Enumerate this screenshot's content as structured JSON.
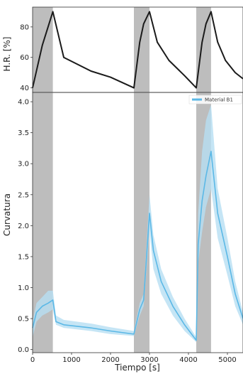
{
  "chart_data": [
    {
      "type": "line",
      "title": "",
      "xlabel": "",
      "ylabel": "H.R. [%]",
      "xlim": [
        0,
        5400
      ],
      "ylim": [
        37,
        93
      ],
      "yticks": [
        40,
        60,
        80
      ],
      "grid": false,
      "shaded_intervals": [
        [
          0,
          520
        ],
        [
          2600,
          3000
        ],
        [
          4200,
          4580
        ]
      ],
      "series": [
        {
          "x": [
            0,
            250,
            520,
            800,
            1500,
            2000,
            2600,
            2750,
            2850,
            3000,
            3200,
            3500,
            3900,
            4200,
            4350,
            4450,
            4580,
            4750,
            4950,
            5200,
            5400
          ],
          "y": [
            40,
            68,
            90,
            60,
            51,
            47,
            40,
            70,
            82,
            90,
            70,
            58,
            48,
            40,
            70,
            82,
            90,
            70,
            58,
            50,
            46
          ]
        }
      ]
    },
    {
      "type": "area",
      "title": "",
      "xlabel": "Tiempo [s]",
      "ylabel": "Curvatura",
      "xlim": [
        0,
        5400
      ],
      "ylim": [
        -0.05,
        4.15
      ],
      "xticks": [
        0,
        1000,
        2000,
        3000,
        4000,
        5000
      ],
      "yticks": [
        0.0,
        0.5,
        1.0,
        1.5,
        2.0,
        2.5,
        3.0,
        3.5,
        4.0
      ],
      "grid": false,
      "legend_position": "top-right",
      "shaded_intervals": [
        [
          0,
          520
        ],
        [
          2600,
          3000
        ],
        [
          4200,
          4580
        ]
      ],
      "series": [
        {
          "name": "Material B1",
          "x": [
            0,
            100,
            250,
            400,
            520,
            600,
            800,
            1500,
            2000,
            2600,
            2750,
            2850,
            3000,
            3100,
            3300,
            3600,
            3900,
            4200,
            4250,
            4350,
            4450,
            4580,
            4750,
            5000,
            5200,
            5400
          ],
          "y": [
            0.35,
            0.6,
            0.7,
            0.75,
            0.8,
            0.45,
            0.4,
            0.35,
            0.3,
            0.25,
            0.65,
            0.8,
            2.2,
            1.6,
            1.1,
            0.7,
            0.4,
            0.15,
            1.7,
            2.4,
            2.8,
            3.2,
            2.2,
            1.5,
            0.9,
            0.5
          ],
          "lower": [
            0.2,
            0.45,
            0.55,
            0.6,
            0.65,
            0.4,
            0.35,
            0.3,
            0.25,
            0.22,
            0.55,
            0.7,
            1.9,
            1.3,
            0.9,
            0.55,
            0.3,
            0.12,
            1.4,
            1.9,
            2.3,
            2.6,
            1.8,
            1.2,
            0.7,
            0.4
          ],
          "upper": [
            0.45,
            0.75,
            0.85,
            0.95,
            0.95,
            0.55,
            0.48,
            0.42,
            0.36,
            0.3,
            0.75,
            0.9,
            2.5,
            1.85,
            1.3,
            0.85,
            0.5,
            0.2,
            2.2,
            3.2,
            3.7,
            3.95,
            2.6,
            1.8,
            1.1,
            0.6
          ]
        }
      ]
    }
  ],
  "colors": {
    "line_top": "#1a1a1a",
    "series": "#5bb8e6",
    "band": "#b7dff3",
    "shade": "#bdbdbd",
    "axis": "#333333"
  }
}
